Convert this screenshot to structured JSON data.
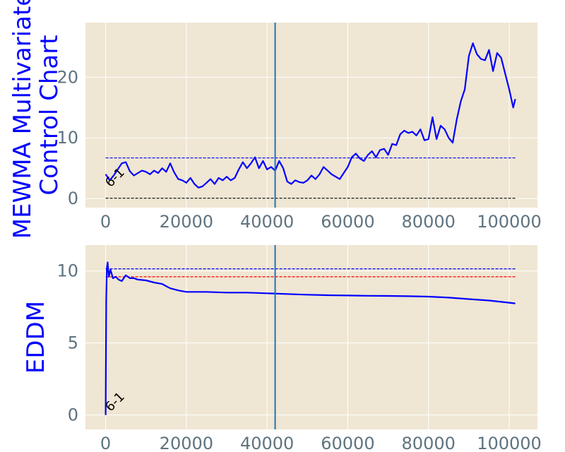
{
  "chart_data": [
    {
      "type": "line",
      "ylabel_lines": [
        "MEWMA Multivariate",
        "Control Chart"
      ],
      "xticks": [
        0,
        20000,
        40000,
        60000,
        80000,
        100000
      ],
      "xtick_labels": [
        "0",
        "20000",
        "40000",
        "60000",
        "80000",
        "100000"
      ],
      "yticks": [
        0,
        10,
        20
      ],
      "ytick_labels": [
        "0",
        "10",
        "20"
      ],
      "xlim": [
        -5000,
        107000
      ],
      "ylim": [
        -1.5,
        29
      ],
      "grid": true,
      "background": "#efe6d3",
      "vline_x": 42000,
      "annotation": {
        "text": "6-1",
        "x": 500,
        "y": 2
      },
      "hlines": [
        {
          "y": 6.7,
          "color": "#0000ff",
          "style": "dashed"
        },
        {
          "y": 0.05,
          "color": "#000000",
          "style": "dashed"
        }
      ],
      "series": [
        {
          "color": "#0000ff",
          "x": [
            0,
            1000,
            2000,
            3000,
            4000,
            5000,
            6000,
            7000,
            8000,
            9000,
            10000,
            11000,
            12000,
            13000,
            14000,
            15000,
            16000,
            17000,
            18000,
            19000,
            20000,
            21000,
            22000,
            23000,
            24000,
            25000,
            26000,
            27000,
            28000,
            29000,
            30000,
            31000,
            32000,
            33000,
            34000,
            35000,
            36000,
            37000,
            38000,
            39000,
            40000,
            41000,
            42000,
            43000,
            44000,
            45000,
            46000,
            47000,
            48000,
            49000,
            50000,
            51000,
            52000,
            53000,
            54000,
            55000,
            56000,
            57000,
            58000,
            59000,
            60000,
            61000,
            62000,
            63000,
            64000,
            65000,
            66000,
            67000,
            68000,
            69000,
            70000,
            71000,
            72000,
            73000,
            74000,
            75000,
            76000,
            77000,
            78000,
            79000,
            80000,
            81000,
            82000,
            83000,
            84000,
            85000,
            86000,
            87000,
            88000,
            89000,
            90000,
            91000,
            92000,
            93000,
            94000,
            95000,
            96000,
            97000,
            98000,
            99000,
            100000,
            101000,
            101500
          ],
          "y": [
            4.0,
            3.0,
            3.8,
            4.8,
            5.8,
            6.0,
            4.5,
            3.8,
            4.2,
            4.6,
            4.4,
            4.0,
            4.6,
            4.2,
            5.0,
            4.4,
            5.8,
            4.3,
            3.2,
            3.0,
            2.6,
            3.4,
            2.4,
            1.8,
            2.0,
            2.6,
            3.2,
            2.4,
            3.4,
            3.0,
            3.6,
            3.0,
            3.4,
            4.8,
            6.0,
            5.0,
            5.8,
            6.8,
            5.0,
            6.2,
            4.8,
            5.2,
            4.6,
            6.2,
            5.0,
            2.8,
            2.4,
            3.0,
            2.7,
            2.6,
            3.0,
            3.8,
            3.2,
            4.0,
            5.2,
            4.6,
            4.0,
            3.6,
            3.2,
            4.2,
            5.2,
            6.8,
            7.4,
            6.6,
            6.2,
            7.2,
            7.8,
            6.8,
            8.0,
            8.2,
            7.2,
            9.0,
            8.8,
            10.6,
            11.2,
            10.8,
            11.0,
            10.4,
            11.4,
            9.6,
            9.8,
            13.4,
            9.8,
            12.0,
            11.4,
            10.0,
            9.2,
            13.0,
            16.0,
            18.0,
            23.5,
            25.6,
            23.8,
            23.0,
            22.8,
            24.5,
            21.0,
            24.0,
            23.2,
            20.6,
            18.0,
            15.0,
            16.4
          ]
        }
      ]
    },
    {
      "type": "line",
      "ylabel_lines": [
        "EDDM"
      ],
      "xticks": [
        0,
        20000,
        40000,
        60000,
        80000,
        100000
      ],
      "xtick_labels": [
        "0",
        "20000",
        "40000",
        "60000",
        "80000",
        "100000"
      ],
      "yticks": [
        0,
        5,
        10
      ],
      "ytick_labels": [
        "0",
        "5",
        "10"
      ],
      "xlim": [
        -5000,
        107000
      ],
      "ylim": [
        -1.0,
        11.8
      ],
      "grid": true,
      "background": "#efe6d3",
      "vline_x": 42000,
      "annotation": {
        "text": "6-1",
        "x": 500,
        "y": 0.3
      },
      "hlines": [
        {
          "y": 10.15,
          "color": "#0000ff",
          "style": "dashed"
        },
        {
          "y": 9.6,
          "color": "#ff0000",
          "style": "dashed"
        }
      ],
      "series": [
        {
          "color": "#0000ff",
          "x": [
            0,
            50,
            150,
            300,
            500,
            800,
            1200,
            1800,
            2500,
            3200,
            4000,
            5000,
            6000,
            7000,
            8000,
            10000,
            12000,
            14000,
            16000,
            18000,
            20000,
            25000,
            30000,
            35000,
            40000,
            45000,
            50000,
            55000,
            60000,
            65000,
            70000,
            75000,
            80000,
            85000,
            90000,
            95000,
            100000,
            101500
          ],
          "y": [
            0.0,
            3.0,
            8.0,
            10.2,
            10.6,
            9.6,
            10.1,
            9.5,
            9.6,
            9.4,
            9.3,
            9.7,
            9.5,
            9.5,
            9.4,
            9.35,
            9.2,
            9.1,
            8.8,
            8.65,
            8.55,
            8.55,
            8.5,
            8.5,
            8.45,
            8.4,
            8.35,
            8.32,
            8.3,
            8.28,
            8.27,
            8.25,
            8.22,
            8.15,
            8.05,
            7.95,
            7.8,
            7.75
          ]
        }
      ]
    }
  ]
}
